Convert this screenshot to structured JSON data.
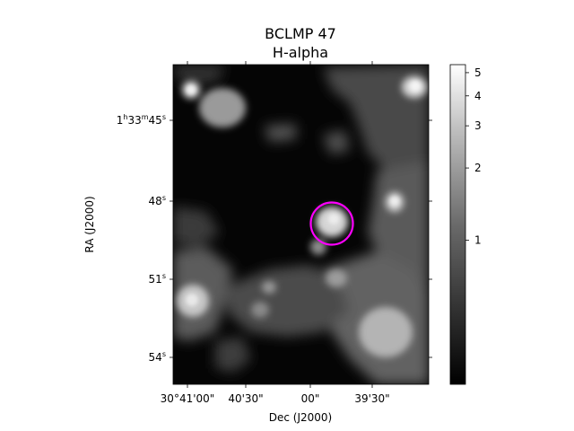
{
  "chart_data": {
    "type": "heatmap",
    "title": "BCLMP 47",
    "subtitle": "H-alpha",
    "xlabel": "Dec (J2000)",
    "ylabel": "RA (J2000)",
    "x_ticks": [
      "30°41'00\"",
      "40'30\"",
      "00\"",
      "39'30\""
    ],
    "y_ticks": [
      {
        "base": "1",
        "parts": [
          [
            "h",
            "33"
          ],
          [
            "m",
            "45"
          ],
          [
            "s",
            ""
          ]
        ]
      },
      {
        "base": "48",
        "parts": [
          [
            "s",
            ""
          ]
        ]
      },
      {
        "base": "51",
        "parts": [
          [
            "s",
            ""
          ]
        ]
      },
      {
        "base": "54",
        "parts": [
          [
            "s",
            ""
          ]
        ]
      }
    ],
    "colorbar": {
      "scale": "log",
      "ticks": [
        1,
        2,
        3,
        4,
        5
      ],
      "tick_labels": [
        "1",
        "2",
        "3",
        "4",
        "5"
      ],
      "range": [
        0.25,
        5.4
      ],
      "colormap": "gray"
    },
    "marker": {
      "shape": "circle",
      "color": "#ff00ff",
      "label": ""
    }
  }
}
